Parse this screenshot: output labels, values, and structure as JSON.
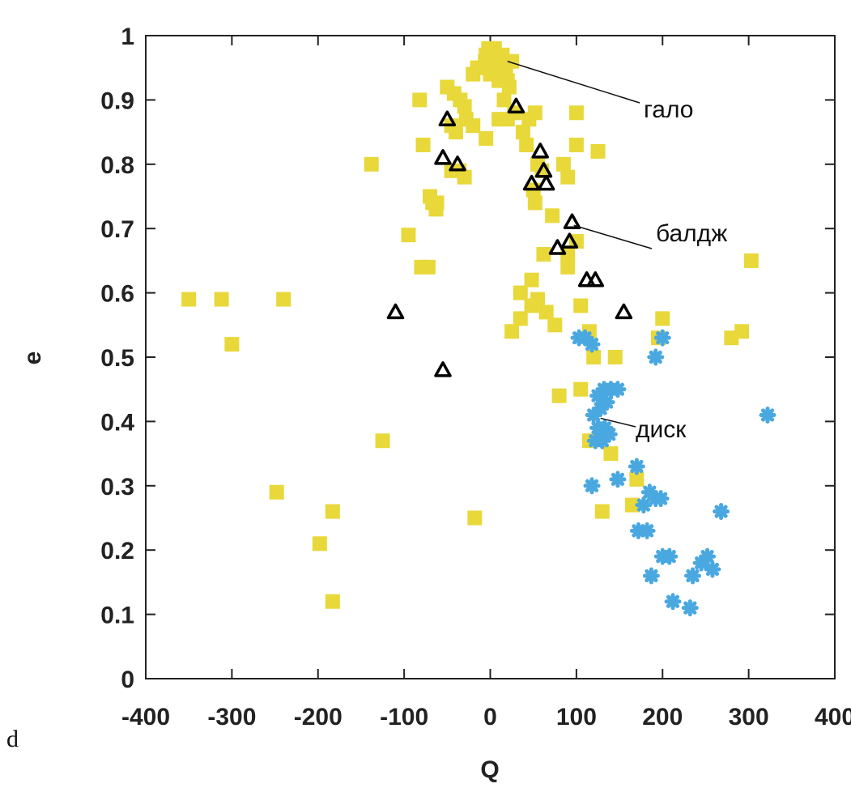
{
  "panel_letter": "d",
  "chart_data": {
    "type": "scatter",
    "xlabel": "Q",
    "ylabel": "e",
    "xlim": [
      -400,
      400
    ],
    "ylim": [
      0,
      1
    ],
    "x_ticks": [
      -400,
      -300,
      -200,
      -100,
      0,
      100,
      200,
      300,
      400
    ],
    "x_tick_labels": [
      "-400",
      "-300",
      "-200",
      "-100",
      "0",
      "100",
      "200",
      "300",
      "400"
    ],
    "y_ticks": [
      0,
      0.1,
      0.2,
      0.3,
      0.4,
      0.5,
      0.6,
      0.7,
      0.8,
      0.9,
      1
    ],
    "y_tick_labels": [
      "0",
      "0.1",
      "0.2",
      "0.3",
      "0.4",
      "0.5",
      "0.6",
      "0.7",
      "0.8",
      "0.9",
      "1"
    ],
    "grid": false,
    "colors": {
      "halo": "#e8d83a",
      "bulge": "#000000",
      "disk": "#4aa8e0"
    },
    "series": [
      {
        "marker": "square",
        "points": [
          [
            -2,
            0.98
          ],
          [
            2,
            0.97
          ],
          [
            5,
            0.98
          ],
          [
            -6,
            0.96
          ],
          [
            8,
            0.96
          ],
          [
            -10,
            0.95
          ],
          [
            12,
            0.95
          ],
          [
            15,
            0.94
          ],
          [
            18,
            0.95
          ],
          [
            -15,
            0.95
          ],
          [
            -20,
            0.94
          ],
          [
            20,
            0.93
          ],
          [
            22,
            0.92
          ],
          [
            10,
            0.93
          ],
          [
            0,
            0.94
          ],
          [
            -5,
            0.97
          ],
          [
            3,
            0.96
          ],
          [
            14,
            0.97
          ],
          [
            16,
            0.9
          ],
          [
            25,
            0.96
          ],
          [
            -50,
            0.92
          ],
          [
            -42,
            0.91
          ],
          [
            -35,
            0.9
          ],
          [
            -30,
            0.89
          ],
          [
            -82,
            0.9
          ],
          [
            -28,
            0.87
          ],
          [
            -20,
            0.86
          ],
          [
            -45,
            0.86
          ],
          [
            -40,
            0.85
          ],
          [
            -5,
            0.84
          ],
          [
            10,
            0.87
          ],
          [
            20,
            0.87
          ],
          [
            28,
            0.88
          ],
          [
            38,
            0.85
          ],
          [
            45,
            0.87
          ],
          [
            52,
            0.88
          ],
          [
            42,
            0.83
          ],
          [
            55,
            0.8
          ],
          [
            60,
            0.79
          ],
          [
            50,
            0.76
          ],
          [
            85,
            0.8
          ],
          [
            90,
            0.78
          ],
          [
            100,
            0.88
          ],
          [
            100,
            0.83
          ],
          [
            125,
            0.82
          ],
          [
            -138,
            0.8
          ],
          [
            -78,
            0.83
          ],
          [
            -45,
            0.79
          ],
          [
            -36,
            0.79
          ],
          [
            -30,
            0.78
          ],
          [
            -70,
            0.75
          ],
          [
            -67,
            0.74
          ],
          [
            -63,
            0.73
          ],
          [
            -95,
            0.69
          ],
          [
            -80,
            0.64
          ],
          [
            -72,
            0.64
          ],
          [
            -62,
            0.74
          ],
          [
            52,
            0.74
          ],
          [
            72,
            0.72
          ],
          [
            90,
            0.66
          ],
          [
            100,
            0.68
          ],
          [
            62,
            0.66
          ],
          [
            90,
            0.64
          ],
          [
            48,
            0.62
          ],
          [
            35,
            0.6
          ],
          [
            55,
            0.59
          ],
          [
            65,
            0.57
          ],
          [
            75,
            0.55
          ],
          [
            48,
            0.58
          ],
          [
            35,
            0.56
          ],
          [
            25,
            0.54
          ],
          [
            105,
            0.58
          ],
          [
            115,
            0.54
          ],
          [
            120,
            0.5
          ],
          [
            145,
            0.5
          ],
          [
            80,
            0.44
          ],
          [
            105,
            0.45
          ],
          [
            200,
            0.56
          ],
          [
            195,
            0.53
          ],
          [
            280,
            0.53
          ],
          [
            292,
            0.54
          ],
          [
            303,
            0.65
          ],
          [
            -350,
            0.59
          ],
          [
            -312,
            0.59
          ],
          [
            -300,
            0.52
          ],
          [
            -240,
            0.59
          ],
          [
            -125,
            0.37
          ],
          [
            -248,
            0.29
          ],
          [
            -198,
            0.21
          ],
          [
            -183,
            0.26
          ],
          [
            -183,
            0.12
          ],
          [
            -18,
            0.25
          ],
          [
            130,
            0.26
          ],
          [
            165,
            0.27
          ],
          [
            170,
            0.31
          ],
          [
            140,
            0.35
          ],
          [
            128,
            0.38
          ],
          [
            115,
            0.37
          ]
        ]
      },
      {
        "marker": "triangle",
        "points": [
          [
            30,
            0.89
          ],
          [
            -50,
            0.87
          ],
          [
            -55,
            0.81
          ],
          [
            -38,
            0.8
          ],
          [
            58,
            0.82
          ],
          [
            62,
            0.79
          ],
          [
            48,
            0.77
          ],
          [
            65,
            0.77
          ],
          [
            95,
            0.71
          ],
          [
            92,
            0.68
          ],
          [
            78,
            0.67
          ],
          [
            112,
            0.62
          ],
          [
            122,
            0.62
          ],
          [
            -110,
            0.57
          ],
          [
            155,
            0.57
          ],
          [
            -55,
            0.48
          ]
        ]
      },
      {
        "marker": "asterisk",
        "points": [
          [
            103,
            0.53
          ],
          [
            110,
            0.53
          ],
          [
            118,
            0.52
          ],
          [
            200,
            0.53
          ],
          [
            192,
            0.5
          ],
          [
            322,
            0.41
          ],
          [
            125,
            0.44
          ],
          [
            132,
            0.45
          ],
          [
            140,
            0.45
          ],
          [
            148,
            0.45
          ],
          [
            120,
            0.41
          ],
          [
            128,
            0.42
          ],
          [
            135,
            0.43
          ],
          [
            125,
            0.39
          ],
          [
            133,
            0.39
          ],
          [
            122,
            0.37
          ],
          [
            130,
            0.37
          ],
          [
            138,
            0.38
          ],
          [
            118,
            0.3
          ],
          [
            148,
            0.31
          ],
          [
            170,
            0.33
          ],
          [
            178,
            0.27
          ],
          [
            185,
            0.29
          ],
          [
            192,
            0.28
          ],
          [
            198,
            0.28
          ],
          [
            172,
            0.23
          ],
          [
            182,
            0.23
          ],
          [
            268,
            0.26
          ],
          [
            200,
            0.19
          ],
          [
            208,
            0.19
          ],
          [
            187,
            0.16
          ],
          [
            235,
            0.16
          ],
          [
            245,
            0.18
          ],
          [
            252,
            0.19
          ],
          [
            258,
            0.17
          ],
          [
            212,
            0.12
          ],
          [
            232,
            0.11
          ]
        ]
      }
    ],
    "annotations": [
      {
        "text": "гало",
        "target": [
          20,
          0.96
        ]
      },
      {
        "text": "балдж",
        "target": [
          97,
          0.705
        ]
      },
      {
        "text": "диск",
        "target": [
          128,
          0.405
        ]
      }
    ]
  }
}
